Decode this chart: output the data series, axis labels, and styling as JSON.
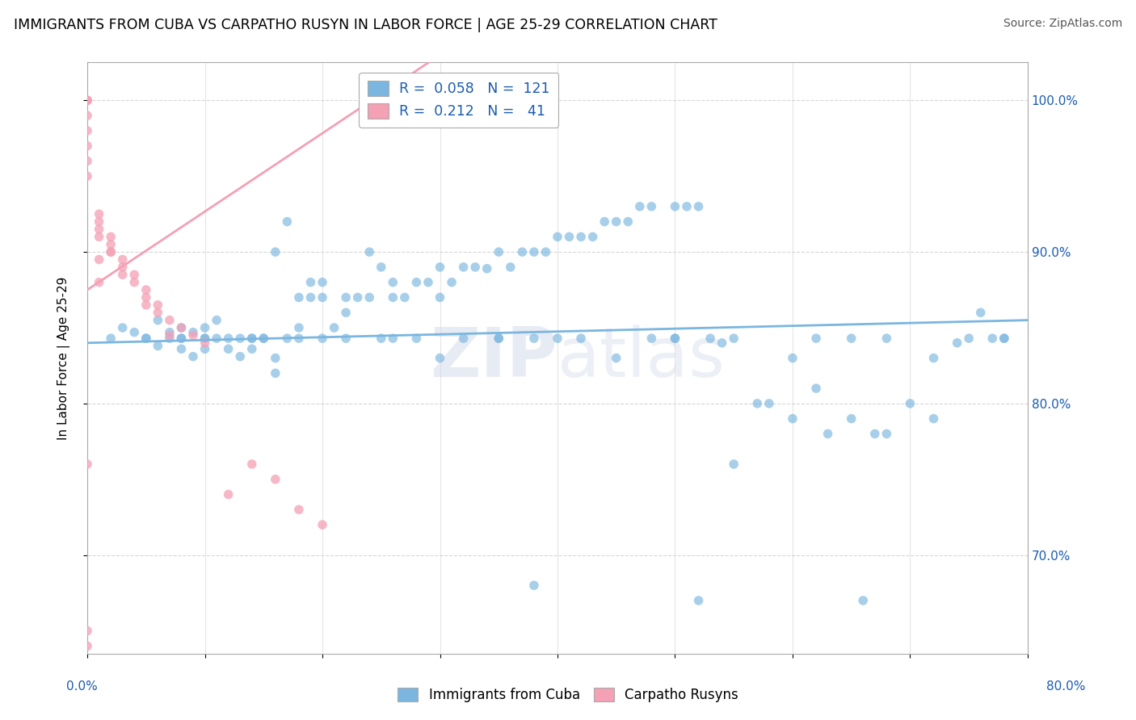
{
  "title": "IMMIGRANTS FROM CUBA VS CARPATHO RUSYN IN LABOR FORCE | AGE 25-29 CORRELATION CHART",
  "source": "Source: ZipAtlas.com",
  "ylabel": "In Labor Force | Age 25-29",
  "watermark": "ZIPatlas",
  "cuba_color": "#7ab6e0",
  "rusyn_color": "#f4a0b5",
  "cuba_R": 0.058,
  "cuba_N": 121,
  "rusyn_R": 0.212,
  "rusyn_N": 41,
  "xmin": 0.0,
  "xmax": 0.8,
  "ymin": 0.635,
  "ymax": 1.025,
  "yticks": [
    0.7,
    0.8,
    0.9,
    1.0
  ],
  "ytick_labels": [
    "70.0%",
    "80.0%",
    "90.0%",
    "100.0%"
  ],
  "cuba_x": [
    0.02,
    0.03,
    0.04,
    0.05,
    0.06,
    0.06,
    0.07,
    0.07,
    0.08,
    0.08,
    0.08,
    0.09,
    0.09,
    0.1,
    0.1,
    0.1,
    0.11,
    0.11,
    0.12,
    0.12,
    0.13,
    0.13,
    0.14,
    0.14,
    0.15,
    0.16,
    0.16,
    0.17,
    0.17,
    0.18,
    0.18,
    0.19,
    0.19,
    0.2,
    0.2,
    0.21,
    0.22,
    0.22,
    0.23,
    0.24,
    0.24,
    0.25,
    0.26,
    0.26,
    0.27,
    0.28,
    0.29,
    0.3,
    0.3,
    0.31,
    0.32,
    0.33,
    0.34,
    0.35,
    0.36,
    0.37,
    0.38,
    0.39,
    0.4,
    0.41,
    0.42,
    0.43,
    0.44,
    0.45,
    0.46,
    0.47,
    0.48,
    0.5,
    0.51,
    0.52,
    0.54,
    0.55,
    0.57,
    0.58,
    0.6,
    0.62,
    0.63,
    0.65,
    0.67,
    0.68,
    0.7,
    0.72,
    0.74,
    0.76,
    0.77,
    0.78,
    0.14,
    0.22,
    0.28,
    0.35,
    0.42,
    0.5,
    0.1,
    0.18,
    0.25,
    0.32,
    0.4,
    0.48,
    0.55,
    0.62,
    0.16,
    0.3,
    0.45,
    0.6,
    0.72,
    0.08,
    0.2,
    0.35,
    0.5,
    0.65,
    0.05,
    0.15,
    0.26,
    0.38,
    0.53,
    0.68,
    0.75,
    0.38,
    0.52,
    0.66,
    0.78
  ],
  "cuba_y": [
    0.843,
    0.85,
    0.847,
    0.843,
    0.855,
    0.838,
    0.843,
    0.847,
    0.836,
    0.843,
    0.85,
    0.831,
    0.847,
    0.843,
    0.85,
    0.836,
    0.843,
    0.855,
    0.843,
    0.836,
    0.843,
    0.831,
    0.843,
    0.836,
    0.843,
    0.9,
    0.82,
    0.92,
    0.843,
    0.87,
    0.85,
    0.87,
    0.88,
    0.88,
    0.87,
    0.85,
    0.87,
    0.86,
    0.87,
    0.9,
    0.87,
    0.89,
    0.87,
    0.88,
    0.87,
    0.88,
    0.88,
    0.87,
    0.89,
    0.88,
    0.89,
    0.89,
    0.889,
    0.9,
    0.89,
    0.9,
    0.9,
    0.9,
    0.91,
    0.91,
    0.91,
    0.91,
    0.92,
    0.92,
    0.92,
    0.93,
    0.93,
    0.93,
    0.93,
    0.93,
    0.84,
    0.76,
    0.8,
    0.8,
    0.79,
    0.81,
    0.78,
    0.79,
    0.78,
    0.78,
    0.8,
    0.79,
    0.84,
    0.86,
    0.843,
    0.843,
    0.843,
    0.843,
    0.843,
    0.843,
    0.843,
    0.843,
    0.843,
    0.843,
    0.843,
    0.843,
    0.843,
    0.843,
    0.843,
    0.843,
    0.83,
    0.83,
    0.83,
    0.83,
    0.83,
    0.843,
    0.843,
    0.843,
    0.843,
    0.843,
    0.843,
    0.843,
    0.843,
    0.843,
    0.843,
    0.843,
    0.843,
    0.68,
    0.67,
    0.67,
    0.843
  ],
  "rusyn_x": [
    0.0,
    0.0,
    0.0,
    0.0,
    0.0,
    0.0,
    0.0,
    0.0,
    0.01,
    0.01,
    0.01,
    0.01,
    0.02,
    0.02,
    0.02,
    0.03,
    0.03,
    0.04,
    0.04,
    0.05,
    0.05,
    0.06,
    0.06,
    0.07,
    0.08,
    0.09,
    0.1,
    0.12,
    0.14,
    0.16,
    0.18,
    0.2,
    0.01,
    0.02,
    0.03,
    0.05,
    0.07,
    0.0,
    0.0,
    0.0,
    0.01
  ],
  "rusyn_y": [
    1.0,
    1.0,
    1.0,
    0.99,
    0.98,
    0.97,
    0.96,
    0.95,
    0.925,
    0.92,
    0.915,
    0.91,
    0.91,
    0.905,
    0.9,
    0.895,
    0.89,
    0.885,
    0.88,
    0.875,
    0.87,
    0.865,
    0.86,
    0.855,
    0.85,
    0.845,
    0.84,
    0.74,
    0.76,
    0.75,
    0.73,
    0.72,
    0.895,
    0.9,
    0.885,
    0.865,
    0.845,
    0.64,
    0.65,
    0.76,
    0.88
  ],
  "cuba_line_x0": 0.0,
  "cuba_line_x1": 0.8,
  "cuba_line_y0": 0.84,
  "cuba_line_y1": 0.855,
  "rusyn_line_x0": 0.0,
  "rusyn_line_x1": 0.3,
  "rusyn_line_y0": 0.875,
  "rusyn_line_y1": 1.03
}
